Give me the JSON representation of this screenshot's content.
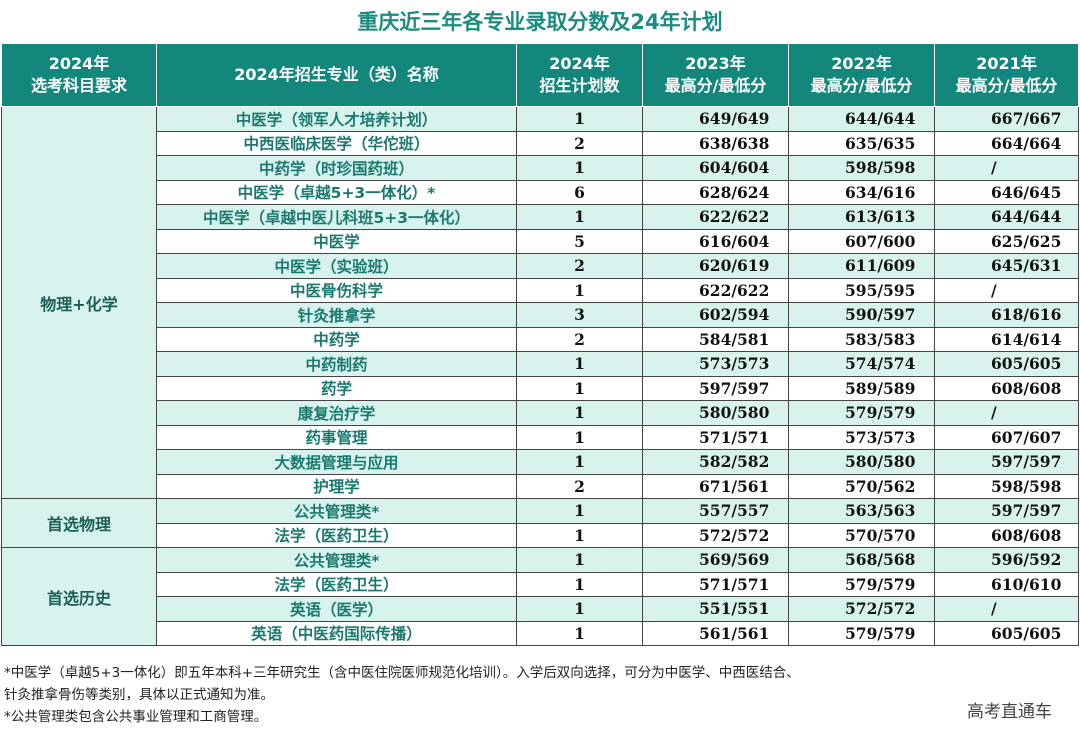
{
  "title": "重庆近三年各专业录取分数及24年计划",
  "headers": {
    "subject_req": [
      "2024年",
      "选考科目要求"
    ],
    "major": "2024年招生专业（类）名称",
    "plan": [
      "2024年",
      "招生计划数"
    ],
    "y2023": [
      "2023年",
      "最高分/最低分"
    ],
    "y2022": [
      "2022年",
      "最高分/最低分"
    ],
    "y2021": [
      "2021年",
      "最高分/最低分"
    ]
  },
  "groups": [
    {
      "label": "物理+化学",
      "rows": [
        {
          "major": "中医学（领军人才培养计划）",
          "plan": "1",
          "y2023": "649/649",
          "y2022": "644/644",
          "y2021": "667/667"
        },
        {
          "major": "中西医临床医学（华佗班）",
          "plan": "2",
          "y2023": "638/638",
          "y2022": "635/635",
          "y2021": "664/664"
        },
        {
          "major": "中药学（时珍国药班）",
          "plan": "1",
          "y2023": "604/604",
          "y2022": "598/598",
          "y2021": "/"
        },
        {
          "major": "中医学（卓越5+3一体化）*",
          "plan": "6",
          "y2023": "628/624",
          "y2022": "634/616",
          "y2021": "646/645"
        },
        {
          "major": "中医学（卓越中医儿科班5+3一体化）",
          "plan": "1",
          "y2023": "622/622",
          "y2022": "613/613",
          "y2021": "644/644"
        },
        {
          "major": "中医学",
          "plan": "5",
          "y2023": "616/604",
          "y2022": "607/600",
          "y2021": "625/625"
        },
        {
          "major": "中医学（实验班）",
          "plan": "2",
          "y2023": "620/619",
          "y2022": "611/609",
          "y2021": "645/631"
        },
        {
          "major": "中医骨伤科学",
          "plan": "1",
          "y2023": "622/622",
          "y2022": "595/595",
          "y2021": "/"
        },
        {
          "major": "针灸推拿学",
          "plan": "3",
          "y2023": "602/594",
          "y2022": "590/597",
          "y2021": "618/616"
        },
        {
          "major": "中药学",
          "plan": "2",
          "y2023": "584/581",
          "y2022": "583/583",
          "y2021": "614/614"
        },
        {
          "major": "中药制药",
          "plan": "1",
          "y2023": "573/573",
          "y2022": "574/574",
          "y2021": "605/605"
        },
        {
          "major": "药学",
          "plan": "1",
          "y2023": "597/597",
          "y2022": "589/589",
          "y2021": "608/608"
        },
        {
          "major": "康复治疗学",
          "plan": "1",
          "y2023": "580/580",
          "y2022": "579/579",
          "y2021": "/"
        },
        {
          "major": "药事管理",
          "plan": "1",
          "y2023": "571/571",
          "y2022": "573/573",
          "y2021": "607/607"
        },
        {
          "major": "大数据管理与应用",
          "plan": "1",
          "y2023": "582/582",
          "y2022": "580/580",
          "y2021": "597/597"
        },
        {
          "major": "护理学",
          "plan": "2",
          "y2023": "671/561",
          "y2022": "570/562",
          "y2021": "598/598"
        }
      ]
    },
    {
      "label": "首选物理",
      "rows": [
        {
          "major": "公共管理类*",
          "plan": "1",
          "y2023": "557/557",
          "y2022": "563/563",
          "y2021": "597/597"
        },
        {
          "major": "法学（医药卫生）",
          "plan": "1",
          "y2023": "572/572",
          "y2022": "570/570",
          "y2021": "608/608"
        }
      ]
    },
    {
      "label": "首选历史",
      "rows": [
        {
          "major": "公共管理类*",
          "plan": "1",
          "y2023": "569/569",
          "y2022": "568/568",
          "y2021": "596/592"
        },
        {
          "major": "法学（医药卫生）",
          "plan": "1",
          "y2023": "571/571",
          "y2022": "579/579",
          "y2021": "610/610"
        },
        {
          "major": "英语（医学）",
          "plan": "1",
          "y2023": "551/551",
          "y2022": "572/572",
          "y2021": "/"
        },
        {
          "major": "英语（中医药国际传播）",
          "plan": "1",
          "y2023": "561/561",
          "y2022": "579/579",
          "y2021": "605/605"
        }
      ]
    }
  ],
  "notes": [
    "*中医学（卓越5+3一体化）即五年本科+三年研究生（含中医住院医师规范化培训）。入学后双向选择，可分为中医学、中西医结合、",
    "针灸推拿骨伤等类别，具体以正式通知为准。",
    "*公共管理类包含公共事业管理和工商管理。"
  ],
  "watermark": "高考直通车",
  "colors": {
    "header_bg": "#13877c",
    "title": "#1a8c80",
    "stripe": "#d8f2ee"
  }
}
